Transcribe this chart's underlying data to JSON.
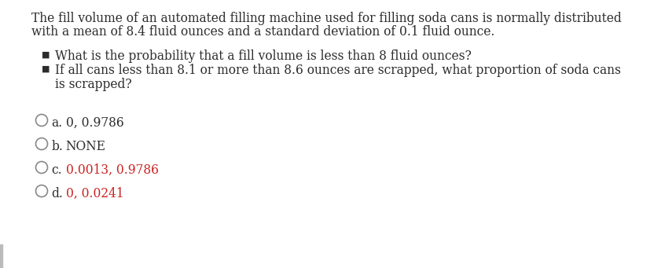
{
  "background_color": "#ffffff",
  "para_line1": "The fill volume of an automated filling machine used for filling soda cans is normally distributed",
  "para_line2": "with a mean of 8.4 fluid ounces and a standard deviation of 0.1 fluid ounce.",
  "bullet1": "What is the probability that a fill volume is less than 8 fluid ounces?",
  "bullet2_line1": "If all cans less than 8.1 or more than 8.6 ounces are scrapped, what proportion of soda cans",
  "bullet2_line2": "is scrapped?",
  "options": [
    {
      "label": "a.",
      "text": "0, 0.9786",
      "text_color": "#2c2c2c"
    },
    {
      "label": "b.",
      "text": "NONE",
      "text_color": "#2c2c2c"
    },
    {
      "label": "c.",
      "text": "0.0013, 0.9786",
      "text_color": "#cc2222"
    },
    {
      "label": "d.",
      "text": "0, 0.0241",
      "text_color": "#cc2222"
    }
  ],
  "text_color": "#2c2c2c",
  "label_color": "#2c2c2c",
  "circle_color": "#888888",
  "bullet_color": "#2c2c2c",
  "left_bar_color": "#bbbbbb",
  "fontsize": 11.2,
  "option_fontsize": 11.2
}
